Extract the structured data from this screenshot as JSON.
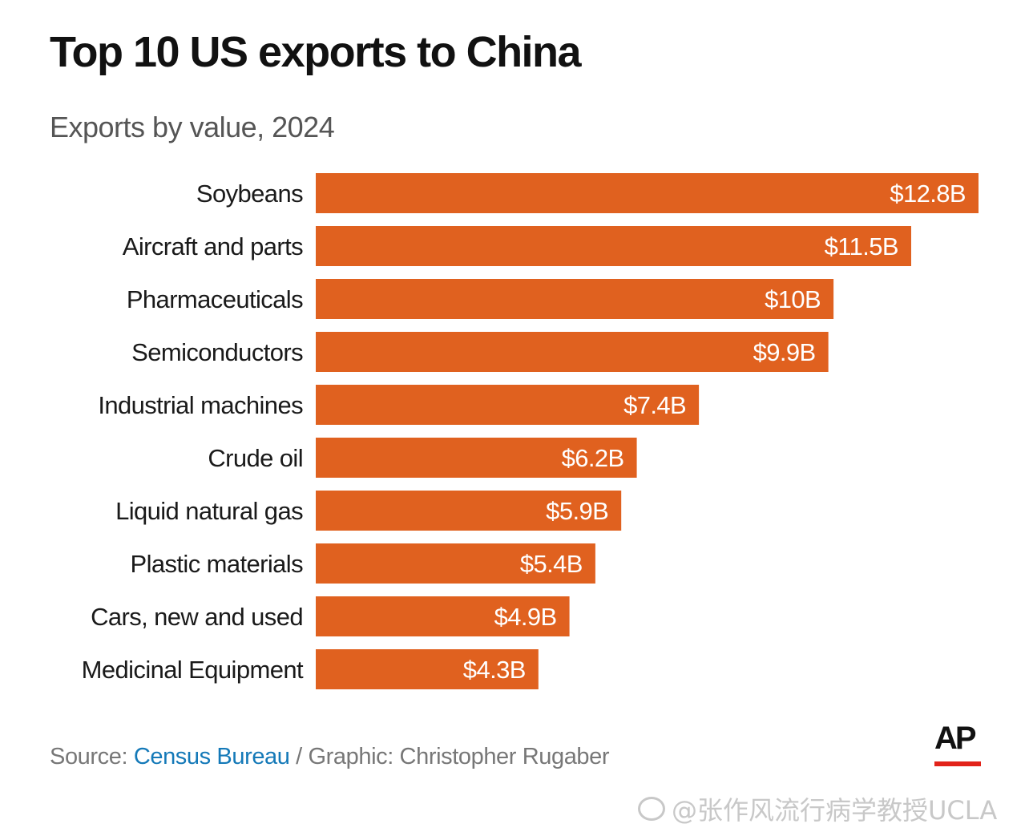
{
  "header": {
    "title": "Top 10 US exports to China",
    "subtitle": "Exports by value, 2024"
  },
  "chart_data": {
    "type": "bar",
    "orientation": "horizontal",
    "title": "Top 10 US exports to China",
    "subtitle": "Exports by value, 2024",
    "categories": [
      "Soybeans",
      "Aircraft and parts",
      "Pharmaceuticals",
      "Semiconductors",
      "Industrial machines",
      "Crude oil",
      "Liquid natural gas",
      "Plastic materials",
      "Cars, new and used",
      "Medicinal Equipment"
    ],
    "values": [
      12.8,
      11.5,
      10,
      9.9,
      7.4,
      6.2,
      5.9,
      5.4,
      4.9,
      4.3
    ],
    "value_labels": [
      "$12.8B",
      "$11.5B",
      "$10B",
      "$9.9B",
      "$7.4B",
      "$6.2B",
      "$5.9B",
      "$5.4B",
      "$4.9B",
      "$4.3B"
    ],
    "unit": "billion USD",
    "xlim": [
      0,
      12.8
    ],
    "xlabel": "",
    "ylabel": "",
    "grid": false,
    "legend": "none",
    "bar_color": "#e0611f"
  },
  "footer": {
    "source_prefix": "Source: ",
    "source_link": "Census Bureau",
    "source_suffix": " / Graphic: Christopher Rugaber",
    "logo_text": "AP",
    "logo_accent_color": "#e2231a"
  },
  "watermark": {
    "text": "@张作风流行病学教授UCLA"
  }
}
